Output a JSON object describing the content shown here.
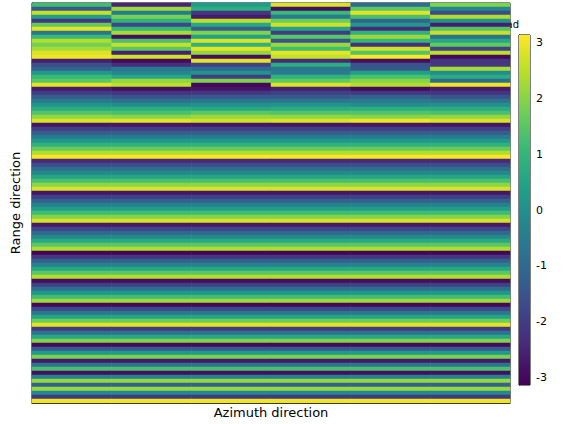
{
  "chart_data": {
    "type": "heatmap",
    "xlabel": "Azimuth direction",
    "ylabel": "Range direction",
    "tick_labels": false,
    "cells": [
      [
        1.2,
        -2.5,
        0.3,
        2.8,
        -0.9,
        1.9
      ],
      [
        -1.4,
        2.2,
        0.8,
        -2.9,
        1.5,
        -0.2
      ],
      [
        2.6,
        -0.5,
        -2.1,
        1.1,
        2.9,
        -1.7
      ],
      [
        0.4,
        1.8,
        -2.7,
        -0.6,
        1.3,
        2.4
      ],
      [
        -2.2,
        0.9,
        2.5,
        1.7,
        -1.1,
        0.1
      ],
      [
        1.6,
        -1.8,
        0.6,
        2.7,
        0.2,
        -2.6
      ],
      [
        2.9,
        1.0,
        -1.3,
        0.5,
        -2.4,
        1.4
      ],
      [
        -0.7,
        2.3,
        1.9,
        -2.0,
        0.9,
        2.6
      ],
      [
        1.1,
        -2.9,
        0.4,
        1.5,
        2.2,
        -0.8
      ],
      [
        2.4,
        1.3,
        2.8,
        -1.5,
        1.0,
        0.6
      ],
      [
        1.8,
        2.6,
        0.9,
        2.2,
        -2.3,
        1.6
      ],
      [
        2.3,
        1.5,
        2.9,
        1.2,
        2.7,
        -1.9
      ],
      [
        2.8,
        -2.6,
        2.1,
        2.9,
        1.4,
        2.5
      ],
      [
        3.0,
        2.7,
        -2.9,
        2.6,
        3.1,
        -3.0
      ],
      [
        -2.6,
        -3.0,
        2.9,
        -2.4,
        -2.9,
        -2.2
      ],
      [
        -1.6,
        -2.3,
        -1.9,
        0.8,
        -1.5,
        -2.1
      ],
      [
        -1.2,
        -0.6,
        -1.0,
        -0.7,
        -1.4,
        2.3
      ],
      [
        0.2,
        -0.3,
        0.1,
        -0.5,
        0.4,
        -0.1
      ],
      [
        1.1,
        0.6,
        -2.0,
        0.9,
        1.3,
        0.7
      ],
      [
        1.5,
        2.1,
        1.9,
        1.6,
        2.0,
        -0.9
      ],
      [
        2.9,
        2.5,
        -3.0,
        2.8,
        2.4,
        3.0
      ],
      [
        -2.7,
        -2.9,
        -2.8,
        -2.6,
        -3.0,
        -2.7
      ],
      [
        -2.0,
        -2.2,
        -2.1,
        -1.9,
        -2.1,
        -2.2
      ],
      [
        -1.3,
        -1.5,
        -1.4,
        -1.4,
        -1.2,
        -1.5
      ],
      [
        -0.6,
        -0.8,
        -0.7,
        -0.7,
        -0.6,
        -0.8
      ],
      [
        0.1,
        -0.1,
        0.0,
        0.1,
        -0.1,
        0.0
      ],
      [
        0.7,
        0.8,
        0.6,
        0.7,
        0.8,
        0.7
      ],
      [
        1.4,
        1.3,
        1.5,
        1.4,
        1.4,
        1.3
      ],
      [
        2.1,
        2.0,
        2.2,
        2.1,
        2.0,
        2.1
      ],
      [
        2.8,
        2.9,
        2.7,
        2.8,
        3.0,
        2.8
      ],
      [
        -2.77,
        -2.77,
        -2.77,
        -2.77,
        -2.77,
        -2.77
      ],
      [
        -2.03,
        -2.03,
        -2.03,
        -2.03,
        -2.03,
        -2.03
      ],
      [
        -1.29,
        -1.29,
        -1.29,
        -1.29,
        -1.29,
        -1.29
      ],
      [
        -0.55,
        -0.55,
        -0.55,
        -0.55,
        -0.55,
        -0.55
      ],
      [
        0.18,
        0.18,
        0.18,
        0.18,
        0.18,
        0.18
      ],
      [
        0.92,
        0.92,
        0.92,
        0.92,
        0.92,
        0.92
      ],
      [
        1.66,
        1.66,
        1.66,
        1.66,
        1.66,
        1.66
      ],
      [
        2.4,
        2.4,
        2.4,
        2.4,
        2.4,
        2.4
      ],
      [
        3.1,
        3.1,
        3.1,
        3.1,
        3.1,
        3.1
      ],
      [
        -2.4,
        -2.4,
        -2.4,
        -2.4,
        -2.4,
        -2.4
      ],
      [
        -1.66,
        -1.66,
        -1.66,
        -1.66,
        -1.66,
        -1.66
      ],
      [
        -0.92,
        -0.92,
        -0.92,
        -0.92,
        -0.92,
        -0.92
      ],
      [
        -0.18,
        -0.18,
        -0.18,
        -0.18,
        -0.18,
        -0.18
      ],
      [
        0.55,
        0.55,
        0.55,
        0.55,
        0.55,
        0.55
      ],
      [
        1.29,
        1.29,
        1.29,
        1.29,
        1.29,
        1.29
      ],
      [
        2.03,
        2.03,
        2.03,
        2.03,
        2.03,
        2.03
      ],
      [
        2.77,
        2.77,
        2.77,
        2.77,
        2.77,
        2.77
      ],
      [
        -2.75,
        -2.75,
        -2.75,
        -2.75,
        -2.75,
        -2.75
      ],
      [
        -1.96,
        -1.96,
        -1.96,
        -1.96,
        -1.96,
        -1.96
      ],
      [
        -1.18,
        -1.18,
        -1.18,
        -1.18,
        -1.18,
        -1.18
      ],
      [
        -0.39,
        -0.39,
        -0.39,
        -0.39,
        -0.39,
        -0.39
      ],
      [
        0.39,
        0.39,
        0.39,
        0.39,
        0.39,
        0.39
      ],
      [
        1.18,
        1.18,
        1.18,
        1.18,
        1.18,
        1.18
      ],
      [
        1.96,
        1.96,
        1.96,
        1.96,
        1.96,
        1.96
      ],
      [
        2.75,
        2.75,
        2.75,
        2.75,
        2.75,
        2.75
      ],
      [
        -2.71,
        -2.71,
        -2.71,
        -2.71,
        -2.71,
        -2.71
      ],
      [
        -1.87,
        -1.87,
        -1.87,
        -1.87,
        -1.87,
        -1.87
      ],
      [
        -1.02,
        -1.02,
        -1.02,
        -1.02,
        -1.02,
        -1.02
      ],
      [
        -0.17,
        -0.17,
        -0.17,
        -0.17,
        -0.17,
        -0.17
      ],
      [
        0.68,
        0.68,
        0.68,
        0.68,
        0.68,
        0.68
      ],
      [
        1.53,
        1.53,
        1.53,
        1.53,
        1.53,
        1.53
      ],
      [
        2.38,
        2.38,
        2.38,
        2.38,
        2.38,
        2.38
      ],
      [
        -3.05,
        -3.05,
        -3.05,
        -3.05,
        -3.05,
        -3.05
      ],
      [
        -2.14,
        -2.14,
        -2.14,
        -2.14,
        -2.14,
        -2.14
      ],
      [
        -1.23,
        -1.23,
        -1.23,
        -1.23,
        -1.23,
        -1.23
      ],
      [
        -0.32,
        -0.32,
        -0.32,
        -0.32,
        -0.32,
        -0.32
      ],
      [
        0.59,
        0.59,
        0.59,
        0.59,
        0.59,
        0.59
      ],
      [
        1.5,
        1.5,
        1.5,
        1.5,
        1.5,
        1.5
      ],
      [
        2.41,
        2.41,
        2.41,
        2.41,
        2.41,
        2.41
      ],
      [
        -2.93,
        -2.93,
        -2.93,
        -2.93,
        -2.93,
        -2.93
      ],
      [
        -1.91,
        -1.91,
        -1.91,
        -1.91,
        -1.91,
        -1.91
      ],
      [
        -0.87,
        -0.87,
        -0.87,
        -0.87,
        -0.87,
        -0.87
      ],
      [
        0.16,
        0.16,
        0.16,
        0.16,
        0.16,
        0.16
      ],
      [
        1.19,
        1.19,
        1.19,
        1.19,
        1.19,
        1.19
      ],
      [
        2.21,
        2.21,
        2.21,
        2.21,
        2.21,
        2.21
      ],
      [
        -3.02,
        -3.02,
        -3.02,
        -3.02,
        -3.02,
        -3.02
      ],
      [
        -1.84,
        -1.84,
        -1.84,
        -1.84,
        -1.84,
        -1.84
      ],
      [
        -0.65,
        -0.65,
        -0.65,
        -0.65,
        -0.65,
        -0.65
      ],
      [
        0.53,
        0.53,
        0.53,
        0.53,
        0.53,
        0.53
      ],
      [
        1.72,
        1.72,
        1.72,
        1.72,
        1.72,
        1.72
      ],
      [
        2.9,
        2.9,
        2.9,
        2.9,
        2.9,
        2.9
      ],
      [
        -2.07,
        -2.07,
        -2.07,
        -2.07,
        -2.07,
        -2.07
      ],
      [
        -0.74,
        -0.74,
        -0.74,
        -0.74,
        -0.74,
        -0.74
      ],
      [
        0.6,
        0.6,
        0.6,
        0.6,
        0.6,
        0.6
      ],
      [
        1.94,
        1.94,
        1.94,
        1.94,
        1.94,
        1.94
      ],
      [
        -2.98,
        -2.98,
        -2.98,
        -2.98,
        -2.98,
        -2.98
      ],
      [
        -1.37,
        -1.37,
        -1.37,
        -1.37,
        -1.37,
        -1.37
      ],
      [
        0.24,
        0.24,
        0.24,
        0.24,
        0.24,
        0.24
      ],
      [
        1.85,
        1.85,
        1.85,
        1.85,
        1.85,
        1.85
      ],
      [
        -2.73,
        -2.73,
        -2.73,
        -2.73,
        -2.73,
        -2.73
      ],
      [
        -0.71,
        -0.71,
        -0.71,
        -0.71,
        -0.71,
        -0.71
      ],
      [
        1.32,
        1.32,
        1.32,
        1.32,
        1.32,
        1.32
      ],
      [
        -2.89,
        -2.89,
        -2.89,
        -2.89,
        -2.89,
        -2.89
      ],
      [
        -0.38,
        -0.38,
        -0.38,
        -0.38,
        -0.38,
        -0.38
      ],
      [
        2.13,
        2.13,
        2.13,
        2.13,
        2.13,
        2.13
      ],
      [
        -1.16,
        -1.16,
        -1.16,
        -1.16,
        -1.16,
        -1.16
      ],
      [
        2.15,
        2.15,
        2.15,
        2.15,
        2.15,
        2.15
      ],
      [
        -0.21,
        -0.21,
        -0.21,
        -0.21,
        -0.21,
        -0.21
      ],
      [
        -2.09,
        -2.09,
        -2.09,
        -2.09,
        -2.09,
        -2.09
      ],
      [
        3.0,
        3.0,
        3.0,
        3.0,
        3.0,
        3.0
      ]
    ],
    "colorbar": {
      "label": "rad",
      "range": [
        -3.14159,
        3.14159
      ],
      "ticks": [
        -3,
        -2,
        -1,
        0,
        1,
        2,
        3
      ]
    }
  }
}
